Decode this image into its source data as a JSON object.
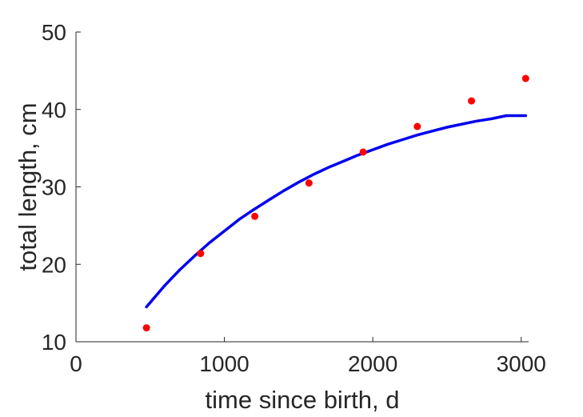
{
  "chart_data": {
    "type": "scatter",
    "xlabel": "time since birth, d",
    "ylabel": "total length, cm",
    "xlim": [
      0,
      3050
    ],
    "ylim": [
      10,
      50
    ],
    "xticks": [
      0,
      1000,
      2000,
      3000
    ],
    "yticks": [
      10,
      20,
      30,
      40,
      50
    ],
    "xtick_labels": [
      "0",
      "1000",
      "2000",
      "3000"
    ],
    "ytick_labels": [
      "10",
      "20",
      "30",
      "40",
      "50"
    ],
    "grid": false,
    "legend": "none",
    "series": [
      {
        "kind": "points",
        "color": "#ff0000",
        "x": [
          475,
          840,
          1205,
          1570,
          1935,
          2300,
          2665,
          3030
        ],
        "y": [
          11.8,
          21.4,
          26.2,
          30.5,
          34.5,
          37.8,
          41.1,
          44.0
        ]
      },
      {
        "kind": "line",
        "color": "#0000ee",
        "x": [
          475,
          600,
          700,
          800,
          900,
          1000,
          1100,
          1200,
          1300,
          1400,
          1500,
          1600,
          1700,
          1800,
          1900,
          2000,
          2100,
          2200,
          2300,
          2400,
          2500,
          2600,
          2700,
          2800,
          2900,
          3030
        ],
        "y": [
          14.5,
          17.3,
          19.3,
          21.1,
          22.8,
          24.3,
          25.8,
          27.1,
          28.3,
          29.5,
          30.6,
          31.6,
          32.5,
          33.3,
          34.1,
          34.8,
          35.5,
          36.1,
          36.7,
          37.2,
          37.7,
          38.1,
          38.5,
          38.8,
          39.2,
          39.2
        ]
      }
    ]
  }
}
